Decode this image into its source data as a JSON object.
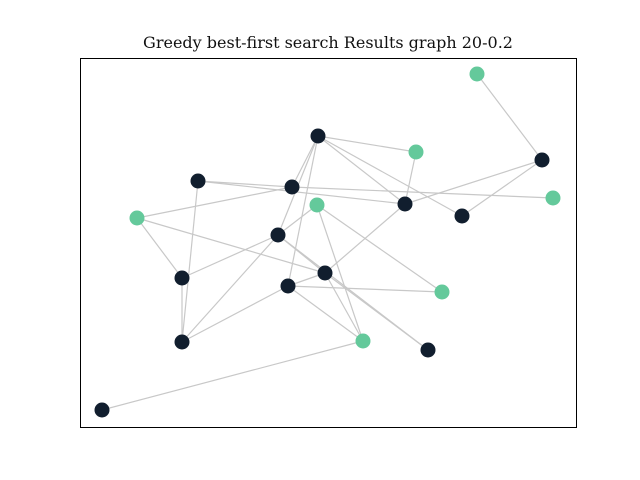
{
  "figure": {
    "title": "Greedy best-first search Results graph 20-0.2"
  },
  "graph": {
    "colors": {
      "visited": "#111e2e",
      "unvisited": "#64c99b",
      "edge": "#c8c8c8"
    },
    "nodes": [
      {
        "id": 0,
        "status": "visited"
      },
      {
        "id": 1,
        "status": "visited"
      },
      {
        "id": 2,
        "status": "unvisited"
      },
      {
        "id": 3,
        "status": "visited"
      },
      {
        "id": 4,
        "status": "visited"
      },
      {
        "id": 5,
        "status": "unvisited"
      },
      {
        "id": 6,
        "status": "visited"
      },
      {
        "id": 7,
        "status": "visited"
      },
      {
        "id": 8,
        "status": "visited"
      },
      {
        "id": 9,
        "status": "unvisited"
      },
      {
        "id": 10,
        "status": "visited"
      },
      {
        "id": 11,
        "status": "unvisited"
      },
      {
        "id": 12,
        "status": "visited"
      },
      {
        "id": 13,
        "status": "visited"
      },
      {
        "id": 14,
        "status": "visited"
      },
      {
        "id": 15,
        "status": "unvisited"
      },
      {
        "id": 16,
        "status": "visited"
      },
      {
        "id": 17,
        "status": "visited"
      },
      {
        "id": 18,
        "status": "unvisited"
      },
      {
        "id": 19,
        "status": "unvisited"
      }
    ],
    "edges": [
      [
        0,
        2
      ],
      [
        1,
        6
      ],
      [
        1,
        4
      ],
      [
        1,
        7
      ],
      [
        1,
        10
      ],
      [
        2,
        7
      ],
      [
        2,
        8
      ],
      [
        2,
        11
      ],
      [
        3,
        6
      ],
      [
        3,
        8
      ],
      [
        4,
        5
      ],
      [
        4,
        6
      ],
      [
        5,
        8
      ],
      [
        5,
        12
      ],
      [
        6,
        8
      ],
      [
        6,
        11
      ],
      [
        6,
        13
      ],
      [
        7,
        8
      ],
      [
        7,
        9
      ],
      [
        7,
        13
      ],
      [
        8,
        14
      ],
      [
        10,
        14
      ],
      [
        10,
        12
      ],
      [
        12,
        13
      ],
      [
        12,
        15
      ],
      [
        13,
        14
      ],
      [
        13,
        16
      ],
      [
        13,
        18
      ],
      [
        14,
        17
      ],
      [
        14,
        18
      ],
      [
        16,
        17
      ],
      [
        17,
        19
      ],
      [
        9,
        11
      ]
    ]
  }
}
